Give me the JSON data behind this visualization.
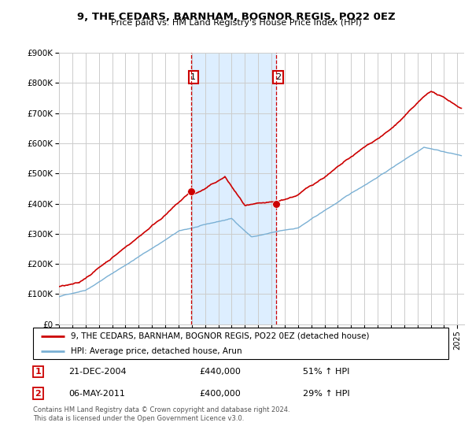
{
  "title": "9, THE CEDARS, BARNHAM, BOGNOR REGIS, PO22 0EZ",
  "subtitle": "Price paid vs. HM Land Registry's House Price Index (HPI)",
  "ylim": [
    0,
    900000
  ],
  "yticks": [
    0,
    100000,
    200000,
    300000,
    400000,
    500000,
    600000,
    700000,
    800000,
    900000
  ],
  "ytick_labels": [
    "£0",
    "£100K",
    "£200K",
    "£300K",
    "£400K",
    "£500K",
    "£600K",
    "£700K",
    "£800K",
    "£900K"
  ],
  "red_color": "#cc0000",
  "blue_color": "#7ab0d4",
  "shade_color": "#ddeeff",
  "point1_year": 2004.97,
  "point1_value": 440000,
  "point2_year": 2011.35,
  "point2_value": 400000,
  "legend_line1": "9, THE CEDARS, BARNHAM, BOGNOR REGIS, PO22 0EZ (detached house)",
  "legend_line2": "HPI: Average price, detached house, Arun",
  "annot1_date": "21-DEC-2004",
  "annot1_price": "£440,000",
  "annot1_hpi": "51% ↑ HPI",
  "annot2_date": "06-MAY-2011",
  "annot2_price": "£400,000",
  "annot2_hpi": "29% ↑ HPI",
  "footer": "Contains HM Land Registry data © Crown copyright and database right 2024.\nThis data is licensed under the Open Government Licence v3.0.",
  "grid_color": "#cccccc",
  "xlim_left": 1995,
  "xlim_right": 2025.5
}
